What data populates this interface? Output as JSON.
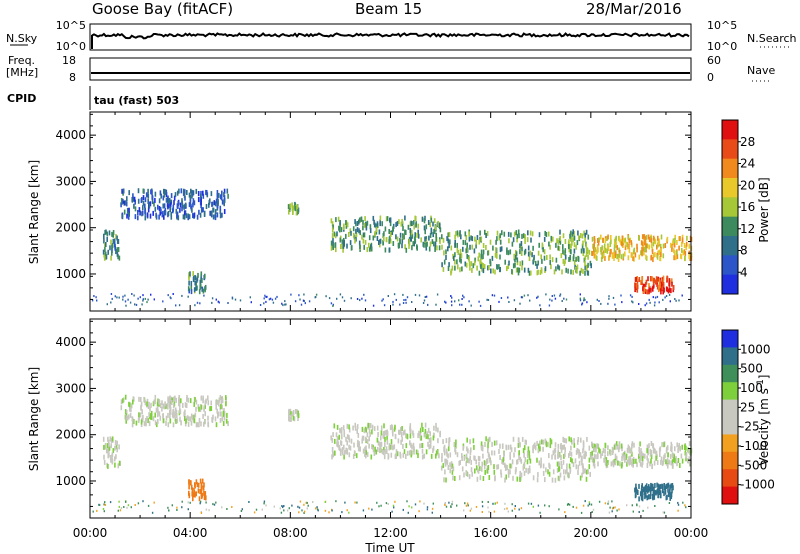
{
  "header": {
    "station": "Goose Bay (fitACF)",
    "beam": "Beam 15",
    "date": "28/Mar/2016"
  },
  "top_panels": {
    "nsky_label": "N.Sky",
    "nsky_ticks": [
      "10^5",
      "10^0"
    ],
    "nsearch_label": "N.Search",
    "nsearch_ticks": [
      "10^5",
      "10^0"
    ],
    "freq_label_1": "Freq.",
    "freq_label_2": "[MHz]",
    "freq_ticks": [
      "18",
      "8"
    ],
    "nave_label": "Nave",
    "nave_ticks": [
      "60",
      "0"
    ],
    "cpid_label": "CPID",
    "cpid_text": "tau (fast) 503"
  },
  "colors": {
    "power_scale": [
      "#1f2fe0",
      "#2b55c8",
      "#2f6f8a",
      "#3c8a5e",
      "#a6c838",
      "#e8c82a",
      "#f08a1e",
      "#e84a18",
      "#e01010"
    ],
    "velocity_scale": [
      "#1f2fe0",
      "#2f6f8a",
      "#3f8f5a",
      "#7ecf3c",
      "#c8c8c0",
      "#c8c8c0",
      "#f2a020",
      "#ee7a16",
      "#e84a14",
      "#e01010"
    ]
  },
  "chart_data": [
    {
      "type": "heatmap",
      "name": "power",
      "xlabel": "",
      "ylabel": "Slant Range [km]",
      "x_range": [
        "00:00",
        "24:00"
      ],
      "ylim": [
        200,
        4500
      ],
      "y_ticks": [
        "1000",
        "2000",
        "3000",
        "4000"
      ],
      "colorbar_label": "Power [dB]",
      "colorbar_ticks": [
        "4",
        "8",
        "12",
        "16",
        "20",
        "24",
        "28"
      ],
      "regions": [
        {
          "t": [
            0.5,
            1.2
          ],
          "r": [
            1300,
            1900
          ],
          "level": 12
        },
        {
          "t": [
            1.2,
            5.5
          ],
          "r": [
            2200,
            2800
          ],
          "level": 8
        },
        {
          "t": [
            3.9,
            4.6
          ],
          "r": [
            600,
            1000
          ],
          "level": 12
        },
        {
          "t": [
            7.9,
            8.3
          ],
          "r": [
            2300,
            2500
          ],
          "level": 14
        },
        {
          "t": [
            9.6,
            14.0
          ],
          "r": [
            1500,
            2200
          ],
          "level": 13
        },
        {
          "t": [
            14.0,
            20.0
          ],
          "r": [
            1000,
            1900
          ],
          "level": 14
        },
        {
          "t": [
            20.0,
            24.0
          ],
          "r": [
            1300,
            1800
          ],
          "level": 20
        },
        {
          "t": [
            21.7,
            23.3
          ],
          "r": [
            600,
            900
          ],
          "level": 27
        }
      ]
    },
    {
      "type": "heatmap",
      "name": "velocity",
      "xlabel": "Time UT",
      "ylabel": "Slant Range [km]",
      "x_range": [
        "00:00",
        "24:00"
      ],
      "ylim": [
        200,
        4500
      ],
      "x_ticks": [
        "00:00",
        "04:00",
        "08:00",
        "12:00",
        "16:00",
        "20:00",
        "00:00"
      ],
      "y_ticks": [
        "1000",
        "2000",
        "3000",
        "4000"
      ],
      "colorbar_label": "Velocity [m s^-1]",
      "colorbar_ticks": [
        "1000",
        "500",
        "100",
        "25",
        "-25",
        "-100",
        "-500",
        "-1000"
      ],
      "regions": [
        {
          "t": [
            0.5,
            1.2
          ],
          "r": [
            1300,
            1900
          ],
          "level": 0
        },
        {
          "t": [
            1.2,
            5.5
          ],
          "r": [
            2200,
            2800
          ],
          "level": 0
        },
        {
          "t": [
            3.9,
            4.6
          ],
          "r": [
            600,
            1000
          ],
          "level": -300
        },
        {
          "t": [
            7.9,
            8.3
          ],
          "r": [
            2300,
            2500
          ],
          "level": 0
        },
        {
          "t": [
            9.6,
            14.0
          ],
          "r": [
            1500,
            2200
          ],
          "level": 0
        },
        {
          "t": [
            14.0,
            20.0
          ],
          "r": [
            1000,
            1900
          ],
          "level": 0
        },
        {
          "t": [
            20.0,
            24.0
          ],
          "r": [
            1300,
            1800
          ],
          "level": 0
        },
        {
          "t": [
            21.7,
            23.3
          ],
          "r": [
            600,
            900
          ],
          "level": 200
        }
      ]
    }
  ]
}
